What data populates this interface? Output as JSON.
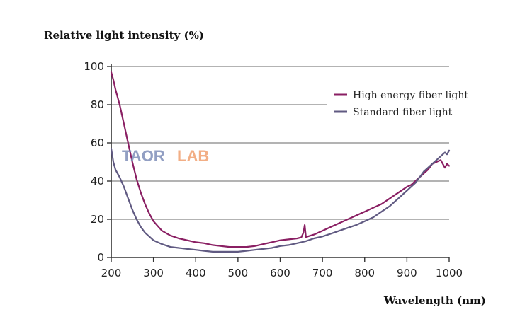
{
  "chart_data": {
    "type": "line",
    "ylabel": "Relative light intensity (%)",
    "xlabel": "Wavelength (nm)",
    "xlim": [
      200,
      1000
    ],
    "ylim": [
      0,
      100
    ],
    "xticks": [
      "200",
      "300",
      "400",
      "500",
      "600",
      "700",
      "800",
      "900",
      "1000"
    ],
    "yticks": [
      "0",
      "20",
      "40",
      "60",
      "80",
      "100"
    ],
    "grid": "horizontal",
    "legend_position": "top-right",
    "series": [
      {
        "name": "High energy fiber light",
        "color": "#8a1f63",
        "x": [
          200,
          205,
          210,
          220,
          230,
          240,
          250,
          260,
          270,
          280,
          290,
          300,
          320,
          340,
          360,
          380,
          400,
          420,
          440,
          460,
          480,
          500,
          520,
          540,
          560,
          580,
          600,
          620,
          640,
          650,
          655,
          658,
          661,
          665,
          680,
          700,
          720,
          740,
          760,
          780,
          800,
          820,
          840,
          860,
          880,
          900,
          910,
          920,
          930,
          940,
          950,
          960,
          970,
          980,
          990,
          995,
          1000
        ],
        "y": [
          97,
          93,
          88,
          80,
          70,
          60,
          50,
          41,
          34,
          28,
          23,
          19,
          14,
          11.5,
          10,
          9,
          8,
          7.5,
          6.5,
          6,
          5.5,
          5.5,
          5.5,
          6,
          7,
          8,
          9,
          9.5,
          10,
          10.5,
          13,
          17,
          10.5,
          11,
          12,
          14,
          16,
          18,
          20,
          22,
          24,
          26,
          28,
          31,
          34,
          37,
          38,
          40,
          42,
          44,
          46,
          49,
          50,
          51,
          47,
          49,
          48
        ]
      },
      {
        "name": "Standard fiber light",
        "color": "#605a82",
        "x": [
          200,
          205,
          210,
          220,
          230,
          240,
          250,
          260,
          270,
          280,
          290,
          300,
          320,
          340,
          360,
          380,
          400,
          420,
          440,
          460,
          480,
          500,
          520,
          540,
          560,
          580,
          600,
          620,
          640,
          660,
          680,
          700,
          720,
          740,
          760,
          780,
          800,
          820,
          840,
          860,
          880,
          900,
          910,
          920,
          930,
          940,
          950,
          960,
          970,
          980,
          990,
          995,
          1000
        ],
        "y": [
          57,
          50,
          46,
          42,
          37,
          31,
          25,
          20,
          16,
          13,
          11,
          9,
          7,
          5.5,
          5,
          4.5,
          4,
          3.5,
          3,
          3,
          3,
          3,
          3.5,
          4,
          4.5,
          5,
          6,
          6.5,
          7.5,
          8.5,
          10,
          11,
          12.5,
          14,
          15.5,
          17,
          19,
          21,
          24,
          27,
          31,
          35,
          37,
          39,
          42,
          45,
          47,
          49,
          51,
          53,
          55,
          54,
          56
        ]
      }
    ]
  },
  "watermark": {
    "part_a": "TAOR",
    "part_b": "LAB",
    "color_a": "#7f8fb9",
    "color_b": "#f0a070"
  }
}
